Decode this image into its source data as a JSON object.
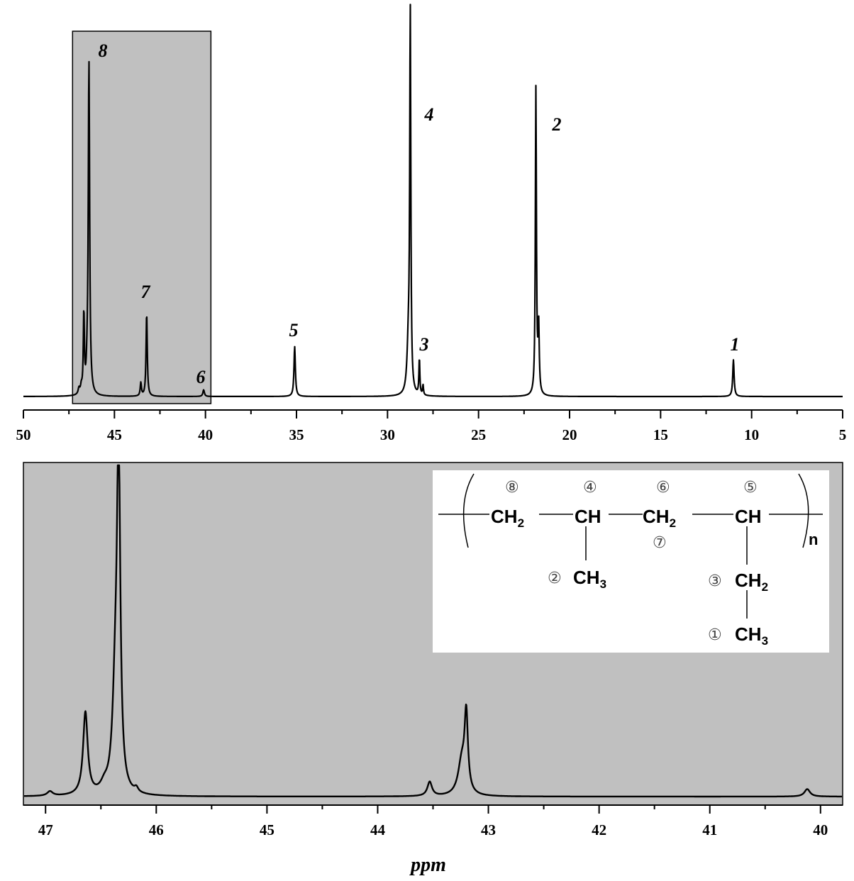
{
  "chart_data": [
    {
      "type": "line",
      "title": "",
      "xlabel": "",
      "ylabel": "",
      "xlim": [
        50,
        5
      ],
      "x_reversed": true,
      "ticks": [
        "50",
        "45",
        "40",
        "35",
        "30",
        "25",
        "20",
        "15",
        "10",
        "5"
      ],
      "highlight_region": [
        47.3,
        39.7
      ],
      "series": [
        {
          "peaks": [
            {
              "x": 46.95,
              "h": 0.017,
              "w": 0.05
            },
            {
              "x": 46.82,
              "h": 0.02,
              "w": 0.05
            },
            {
              "x": 46.68,
              "h": 0.24,
              "w": 0.035
            },
            {
              "x": 46.5,
              "h": 0.04,
              "w": 0.05
            },
            {
              "x": 46.4,
              "h": 1.0,
              "w": 0.045
            },
            {
              "x": 43.55,
              "h": 0.04,
              "w": 0.04
            },
            {
              "x": 43.23,
              "h": 0.25,
              "w": 0.04
            },
            {
              "x": 40.1,
              "h": 0.02,
              "w": 0.05
            },
            {
              "x": 35.1,
              "h": 0.15,
              "w": 0.045
            },
            {
              "x": 28.75,
              "h": 1.12,
              "w": 0.035
            },
            {
              "x": 28.85,
              "h": 0.15,
              "w": 0.09
            },
            {
              "x": 28.25,
              "h": 0.11,
              "w": 0.03
            },
            {
              "x": 28.05,
              "h": 0.03,
              "w": 0.03
            },
            {
              "x": 21.85,
              "h": 0.92,
              "w": 0.035
            },
            {
              "x": 21.7,
              "h": 0.2,
              "w": 0.04
            },
            {
              "x": 11.0,
              "h": 0.11,
              "w": 0.045
            }
          ]
        }
      ],
      "peak_labels": [
        {
          "text": "8",
          "x": 46.4
        },
        {
          "text": "7",
          "x": 43.23
        },
        {
          "text": "6",
          "x": 40.1
        },
        {
          "text": "5",
          "x": 35.1
        },
        {
          "text": "4",
          "x": 28.75
        },
        {
          "text": "3",
          "x": 28.25
        },
        {
          "text": "2",
          "x": 21.85
        },
        {
          "text": "1",
          "x": 11.0
        }
      ]
    },
    {
      "type": "line",
      "title": "",
      "xlabel": "ppm",
      "ylabel": "",
      "xlim": [
        47.2,
        39.8
      ],
      "x_reversed": true,
      "ticks": [
        "47",
        "46",
        "45",
        "44",
        "43",
        "42",
        "41",
        "40"
      ],
      "series": [
        {
          "peaks": [
            {
              "x": 46.96,
              "h": 0.012,
              "w": 0.03
            },
            {
              "x": 46.64,
              "h": 0.22,
              "w": 0.025
            },
            {
              "x": 46.47,
              "h": 0.02,
              "w": 0.04
            },
            {
              "x": 46.37,
              "h": 0.25,
              "w": 0.03
            },
            {
              "x": 46.34,
              "h": 0.88,
              "w": 0.018
            },
            {
              "x": 46.18,
              "h": 0.012,
              "w": 0.02
            },
            {
              "x": 43.53,
              "h": 0.038,
              "w": 0.025
            },
            {
              "x": 43.24,
              "h": 0.09,
              "w": 0.04
            },
            {
              "x": 43.2,
              "h": 0.2,
              "w": 0.018
            },
            {
              "x": 40.12,
              "h": 0.02,
              "w": 0.03
            }
          ]
        }
      ]
    }
  ],
  "structure": {
    "groups": [
      {
        "formula": "CH",
        "sub": "2",
        "number": "⑧"
      },
      {
        "formula": "CH",
        "sub": "",
        "number": "④"
      },
      {
        "formula": "CH",
        "sub": "2",
        "number": "⑥"
      },
      {
        "formula": "CH",
        "sub": "",
        "number": "⑤"
      }
    ],
    "branches": [
      {
        "formula": "CH",
        "sub": "3",
        "number": "②"
      },
      {
        "formula": "CH",
        "sub": "2",
        "number": "③"
      },
      {
        "formula": "CH",
        "sub": "3",
        "number": "①"
      }
    ],
    "extra_number": "⑦",
    "repeat_label": "n"
  },
  "colors": {
    "highlight": "#c0c0c0",
    "line": "#000000",
    "background": "#ffffff"
  }
}
